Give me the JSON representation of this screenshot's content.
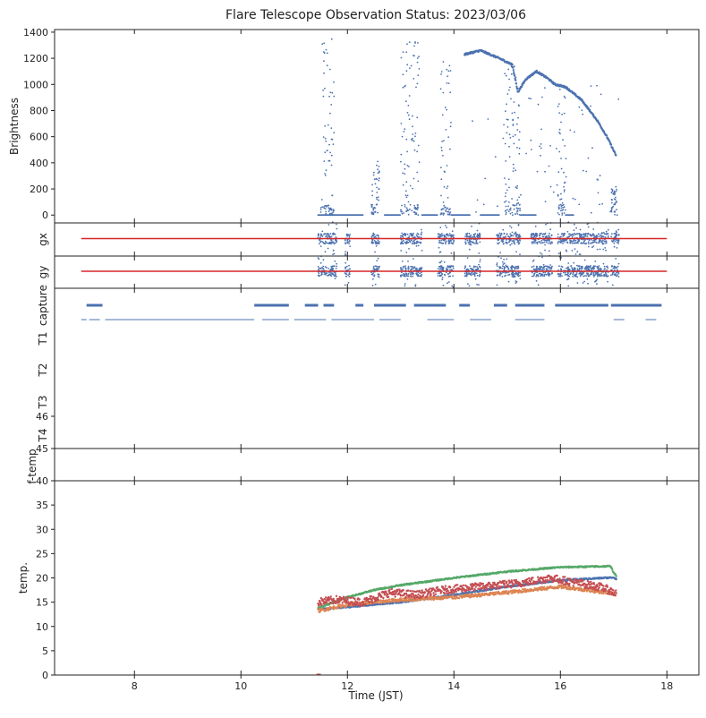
{
  "chart_data": {
    "title": "Flare Telescope Observation Status: 2023/03/06",
    "xlabel": "Time (JST)",
    "xlim": [
      6.5,
      18.6
    ],
    "x_ticks": [
      "8",
      "10",
      "12",
      "14",
      "16",
      "18"
    ],
    "colors": {
      "blue": "#4c72b0",
      "red": "#d62728",
      "green": "#55a868",
      "orange": "#dd8452",
      "tempred": "#c44e52",
      "axis": "#222222"
    },
    "panels": [
      {
        "id": "brightness",
        "type": "scatter",
        "ylabel": "Brightness",
        "ylim": [
          -60,
          1420
        ],
        "y_ticks": [
          "0",
          "200",
          "400",
          "600",
          "800",
          "1000",
          "1200",
          "1400"
        ],
        "bursts": [
          {
            "x0": 11.5,
            "x1": 11.75,
            "hi": 1350
          },
          {
            "x0": 12.45,
            "x1": 12.6,
            "hi": 420
          },
          {
            "x0": 13.0,
            "x1": 13.35,
            "hi": 1370
          },
          {
            "x0": 13.75,
            "x1": 13.95,
            "hi": 1200
          },
          {
            "x0": 14.95,
            "x1": 15.25,
            "hi": 1180
          },
          {
            "x0": 15.95,
            "x1": 16.1,
            "hi": 1000
          }
        ],
        "curve": [
          [
            14.2,
            1230
          ],
          [
            14.5,
            1260
          ],
          [
            14.85,
            1200
          ],
          [
            15.1,
            1150
          ],
          [
            15.2,
            940
          ],
          [
            15.35,
            1040
          ],
          [
            15.55,
            1100
          ],
          [
            15.75,
            1050
          ],
          [
            15.9,
            1000
          ],
          [
            16.1,
            980
          ],
          [
            16.4,
            880
          ],
          [
            16.7,
            720
          ],
          [
            16.9,
            580
          ],
          [
            17.05,
            450
          ]
        ],
        "zero_segments": [
          [
            11.45,
            12.3
          ],
          [
            12.7,
            13.0
          ],
          [
            13.4,
            13.7
          ],
          [
            13.95,
            14.3
          ],
          [
            14.5,
            14.85
          ],
          [
            15.25,
            15.55
          ],
          [
            16.1,
            16.25
          ]
        ]
      },
      {
        "id": "gx",
        "type": "scatter",
        "ylabel": "gx",
        "reference_line": [
          7.0,
          18.0
        ]
      },
      {
        "id": "gy",
        "type": "scatter",
        "ylabel": "gy",
        "reference_line": [
          7.0,
          18.0
        ]
      },
      {
        "id": "status",
        "type": "timeline",
        "rows": [
          "capture",
          "T1",
          "T2",
          "T3",
          "T4"
        ],
        "capture_segments": [
          [
            7.1,
            7.4
          ],
          [
            10.25,
            10.9
          ],
          [
            11.2,
            11.45
          ],
          [
            11.55,
            11.75
          ],
          [
            12.15,
            12.3
          ],
          [
            12.5,
            13.1
          ],
          [
            13.25,
            13.85
          ],
          [
            14.1,
            14.3
          ],
          [
            14.75,
            15.0
          ],
          [
            15.15,
            15.7
          ],
          [
            15.9,
            16.9
          ],
          [
            16.95,
            17.9
          ]
        ],
        "t1_segments": [
          [
            7.0,
            7.1
          ],
          [
            7.15,
            7.35
          ],
          [
            7.45,
            10.25
          ],
          [
            10.4,
            10.9
          ],
          [
            11.0,
            11.6
          ],
          [
            11.7,
            12.5
          ],
          [
            12.6,
            13.0
          ],
          [
            13.5,
            14.0
          ],
          [
            14.3,
            14.7
          ],
          [
            15.15,
            15.7
          ],
          [
            17.0,
            17.2
          ],
          [
            17.6,
            17.8
          ]
        ]
      },
      {
        "id": "ftemp",
        "type": "line",
        "ylabel": "f-temp",
        "ylim": [
          44,
          46
        ],
        "y_ticks": [
          "45",
          "46"
        ]
      },
      {
        "id": "temp",
        "type": "line",
        "ylabel": "temp.",
        "ylim": [
          0,
          40
        ],
        "y_ticks": [
          "0",
          "5",
          "10",
          "15",
          "20",
          "25",
          "30",
          "35",
          "40"
        ],
        "series": [
          {
            "color": "blue",
            "points": [
              [
                11.45,
                13.5
              ],
              [
                12,
                14.0
              ],
              [
                13,
                15.0
              ],
              [
                14,
                16.5
              ],
              [
                15,
                18.2
              ],
              [
                16,
                19.5
              ],
              [
                17,
                20.1
              ],
              [
                17.05,
                19.8
              ]
            ]
          },
          {
            "color": "green",
            "points": [
              [
                11.45,
                13.8
              ],
              [
                12,
                16.0
              ],
              [
                12.5,
                17.5
              ],
              [
                13,
                18.5
              ],
              [
                14,
                20.0
              ],
              [
                15,
                21.3
              ],
              [
                16,
                22.2
              ],
              [
                16.95,
                22.4
              ],
              [
                17.0,
                21.0
              ],
              [
                17.05,
                20.5
              ]
            ]
          },
          {
            "color": "orange",
            "points": [
              [
                11.45,
                13.2
              ],
              [
                12,
                14.5
              ],
              [
                13,
                15.5
              ],
              [
                14,
                16.0
              ],
              [
                15,
                17.0
              ],
              [
                16,
                18.2
              ],
              [
                17,
                16.8
              ]
            ]
          },
          {
            "color": "tempred",
            "points": [
              [
                11.45,
                15.0
              ],
              [
                11.8,
                15.5
              ],
              [
                12.3,
                15.0
              ],
              [
                12.8,
                17.0
              ],
              [
                13.3,
                16.5
              ],
              [
                13.8,
                17.5
              ],
              [
                14.3,
                18.0
              ],
              [
                14.8,
                18.5
              ],
              [
                15.3,
                19.0
              ],
              [
                15.8,
                20.0
              ],
              [
                16.3,
                19.0
              ],
              [
                16.8,
                18.0
              ],
              [
                17.05,
                16.8
              ]
            ]
          }
        ]
      }
    ]
  }
}
